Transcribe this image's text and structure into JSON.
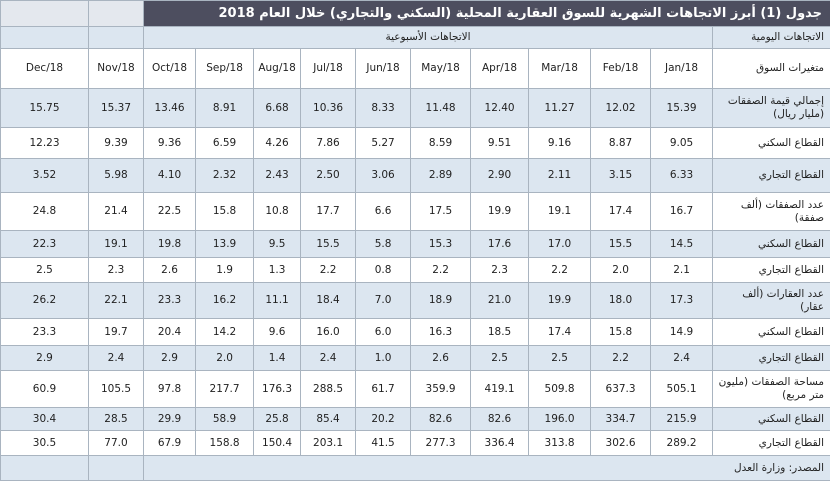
{
  "title": "جدول (1) أبرز الاتجاهات الشهرية للسوق العقارية المحلية (السكني والتجاري) خلال العام 2018",
  "daily_label": "الاتجاهات اليومية",
  "weekly_label": "الاتجاهات الأسبوعية",
  "table": {
    "header": [
      "متغيرات السوق",
      "Jan/18",
      "Feb/18",
      "Mar/18",
      "Apr/18",
      "May/18",
      "Jun/18",
      "Jul/18",
      "Aug/18",
      "Sep/18",
      "Oct/18",
      "Nov/18",
      "Dec/18"
    ],
    "rows": [
      [
        "إجمالي قيمة الصفقات (مليار ريال)",
        "15.39",
        "12.02",
        "11.27",
        "12.40",
        "11.48",
        "8.33",
        "10.36",
        "6.68",
        "8.91",
        "13.46",
        "15.37",
        "15.75"
      ],
      [
        "القطاع السكني",
        "9.05",
        "8.87",
        "9.16",
        "9.51",
        "8.59",
        "5.27",
        "7.86",
        "4.26",
        "6.59",
        "9.36",
        "9.39",
        "12.23"
      ],
      [
        "القطاع التجاري",
        "6.33",
        "3.15",
        "2.11",
        "2.90",
        "2.89",
        "3.06",
        "2.50",
        "2.43",
        "2.32",
        "4.10",
        "5.98",
        "3.52"
      ],
      [
        "عدد الصفقات (ألف صفقة)",
        "16.7",
        "17.4",
        "19.1",
        "19.9",
        "17.5",
        "6.6",
        "17.7",
        "10.8",
        "15.8",
        "22.5",
        "21.4",
        "24.8"
      ],
      [
        "القطاع السكني",
        "14.5",
        "15.5",
        "17.0",
        "17.6",
        "15.3",
        "5.8",
        "15.5",
        "9.5",
        "13.9",
        "19.8",
        "19.1",
        "22.3"
      ],
      [
        "القطاع التجاري",
        "2.1",
        "2.0",
        "2.2",
        "2.3",
        "2.2",
        "0.8",
        "2.2",
        "1.3",
        "1.9",
        "2.6",
        "2.3",
        "2.5"
      ],
      [
        "عدد العقارات (ألف عقار)",
        "17.3",
        "18.0",
        "19.9",
        "21.0",
        "18.9",
        "7.0",
        "18.4",
        "11.1",
        "16.2",
        "23.3",
        "22.1",
        "26.2"
      ],
      [
        "القطاع السكني",
        "14.9",
        "15.8",
        "17.4",
        "18.5",
        "16.3",
        "6.0",
        "16.0",
        "9.6",
        "14.2",
        "20.4",
        "19.7",
        "23.3"
      ],
      [
        "القطاع التجاري",
        "2.4",
        "2.2",
        "2.5",
        "2.5",
        "2.6",
        "1.0",
        "2.4",
        "1.4",
        "2.0",
        "2.9",
        "2.4",
        "2.9"
      ],
      [
        "مساحة الصفقات (مليون متر مربع)",
        "505.1",
        "637.3",
        "509.8",
        "419.1",
        "359.9",
        "61.7",
        "288.5",
        "176.3",
        "217.7",
        "97.8",
        "105.5",
        "60.9"
      ],
      [
        "القطاع السكني",
        "215.9",
        "334.7",
        "196.0",
        "82.6",
        "82.6",
        "20.2",
        "85.4",
        "25.8",
        "58.9",
        "29.9",
        "28.5",
        "30.4"
      ],
      [
        "القطاع التجاري",
        "289.2",
        "302.6",
        "313.8",
        "336.4",
        "277.3",
        "41.5",
        "203.1",
        "150.4",
        "158.8",
        "67.9",
        "77.0",
        "30.5"
      ]
    ]
  },
  "source": "المصدر: وزارة العدل"
}
